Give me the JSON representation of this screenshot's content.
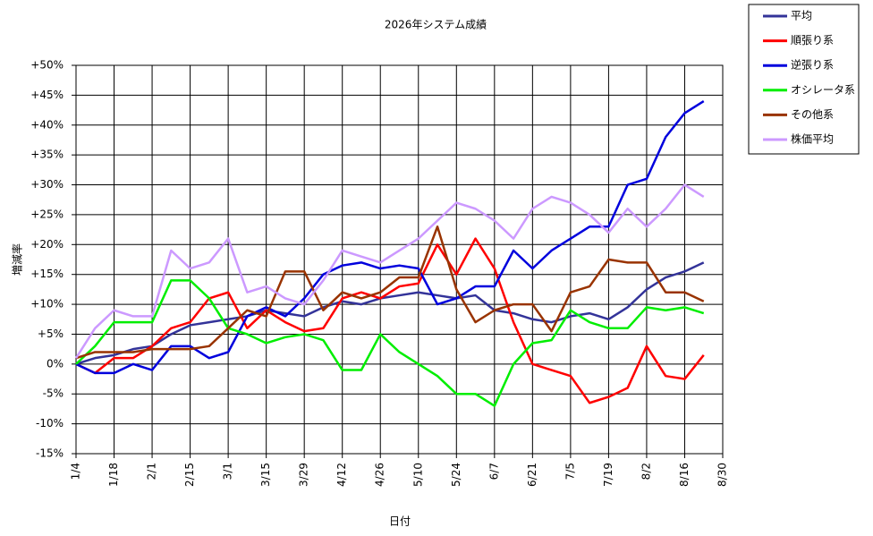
{
  "chart_data": {
    "type": "line",
    "title": "2026年システム成績",
    "x_label": "日付",
    "y_label": "増減率",
    "categories": [
      "1/4",
      null,
      "1/18",
      null,
      "2/1",
      null,
      "2/15",
      null,
      "3/1",
      null,
      "3/15",
      null,
      "3/29",
      null,
      "4/12",
      null,
      "4/26",
      null,
      "5/10",
      null,
      "5/24",
      null,
      "6/7",
      null,
      "6/21",
      null,
      "7/5",
      null,
      "7/19",
      null,
      "8/2",
      null,
      "8/16",
      null,
      "8/30"
    ],
    "ylim": [
      -15,
      50
    ],
    "yticks": [
      {
        "value": -15,
        "label": "-15%"
      },
      {
        "value": -10,
        "label": "-10%"
      },
      {
        "value": -5,
        "label": "-5%"
      },
      {
        "value": 0,
        "label": "0%"
      },
      {
        "value": 5,
        "label": "+5%"
      },
      {
        "value": 10,
        "label": "+10%"
      },
      {
        "value": 15,
        "label": "+15%"
      },
      {
        "value": 20,
        "label": "+20%"
      },
      {
        "value": 25,
        "label": "+25%"
      },
      {
        "value": 30,
        "label": "+30%"
      },
      {
        "value": 35,
        "label": "+35%"
      },
      {
        "value": 40,
        "label": "+40%"
      },
      {
        "value": 45,
        "label": "+45%"
      },
      {
        "value": 50,
        "label": "+50%"
      }
    ],
    "grid": true,
    "legend": "right",
    "series": [
      {
        "name": "平均",
        "color": "#333399",
        "values": [
          0,
          1,
          1.5,
          2.5,
          3,
          5,
          6.5,
          7,
          7.5,
          8,
          9,
          8.5,
          8,
          9.5,
          10.5,
          10,
          11,
          11.5,
          12,
          11.5,
          11,
          11.5,
          9,
          8.5,
          7.5,
          7,
          8,
          8.5,
          7.5,
          9.5,
          12.5,
          14.5,
          15.5,
          17,
          null
        ]
      },
      {
        "name": "順張り系",
        "color": "#ff0000",
        "values": [
          0,
          -1.5,
          1,
          1,
          3,
          6,
          7,
          11,
          12,
          6,
          9,
          7,
          5.5,
          6,
          11,
          12,
          11,
          13,
          13.5,
          20,
          15,
          21,
          16,
          7,
          0,
          -1,
          -2,
          -6.5,
          -5.5,
          -4,
          3,
          -2,
          -2.5,
          1.5,
          null
        ]
      },
      {
        "name": "逆張り系",
        "color": "#0000dd",
        "values": [
          0,
          -1.5,
          -1.5,
          0,
          -1,
          3,
          3,
          1,
          2,
          8,
          9.5,
          8,
          11,
          15,
          16.5,
          17,
          16,
          16.5,
          16,
          10,
          11,
          13,
          13,
          19,
          16,
          19,
          21,
          23,
          23,
          30,
          31,
          38,
          42,
          44,
          null
        ]
      },
      {
        "name": "オシレータ系",
        "color": "#00ee00",
        "values": [
          0,
          3,
          7,
          7,
          7,
          14,
          14,
          11,
          6,
          5,
          3.5,
          4.5,
          5,
          4,
          -1,
          -1,
          5,
          2,
          0,
          -2,
          -5,
          -5,
          -7,
          0,
          3.5,
          4,
          9,
          7,
          6,
          6,
          9.5,
          9,
          9.5,
          8.5,
          null
        ]
      },
      {
        "name": "その他系",
        "color": "#993300",
        "values": [
          1,
          2,
          2,
          2,
          2.5,
          2.5,
          2.5,
          3,
          6,
          9,
          8,
          15.5,
          15.5,
          9,
          12,
          11,
          12,
          14.5,
          14.5,
          23,
          12.5,
          7,
          9,
          10,
          10,
          5.5,
          12,
          13,
          17.5,
          17,
          17,
          12,
          12,
          10.5,
          null
        ]
      },
      {
        "name": "株価平均",
        "color": "#cc99ff",
        "values": [
          1,
          6,
          9,
          8,
          8,
          19,
          16,
          17,
          21,
          12,
          13,
          11,
          10,
          14,
          19,
          18,
          17,
          19,
          21,
          24,
          27,
          26,
          24,
          21,
          26,
          28,
          27,
          25,
          22,
          26,
          23,
          26,
          30,
          28,
          null
        ]
      }
    ]
  }
}
